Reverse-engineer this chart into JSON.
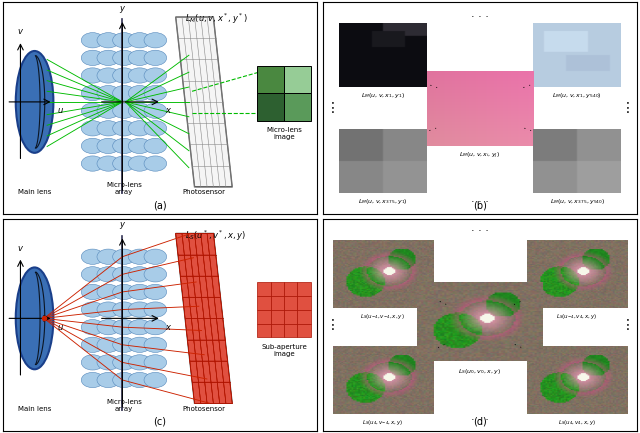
{
  "bg_color": "#ffffff",
  "border_color": "#000000",
  "blue_ellipse_fill": "#3a6fb5",
  "blue_ellipse_edge": "#1a3f8a",
  "blue_lens_dark": "#2255a0",
  "microlens_fill": "#a8cce8",
  "microlens_edge": "#5588bb",
  "photosensor_fill": "#f5f5f5",
  "photosensor_edge": "#555555",
  "green_ray": "#00bb00",
  "red_ray": "#cc2200",
  "red_cell_fill": "#e05040",
  "red_cell_edge": "#bb1100",
  "sub_img_fill": "#e05040",
  "sub_img_edge": "#aa1100",
  "green_dark": "#2d6030",
  "green_mid": "#4a8a4a",
  "green_light": "#88cc88",
  "green_lighter": "#aaddaa",
  "text_color": "#000000",
  "formula_a": "$L_M(u, v, x^*, y^*)$",
  "formula_c": "$L_S(u^*, v^*, x, y)$",
  "label_a": "(a)",
  "label_b": "(b)",
  "label_c": "(c)",
  "label_d": "(d)"
}
